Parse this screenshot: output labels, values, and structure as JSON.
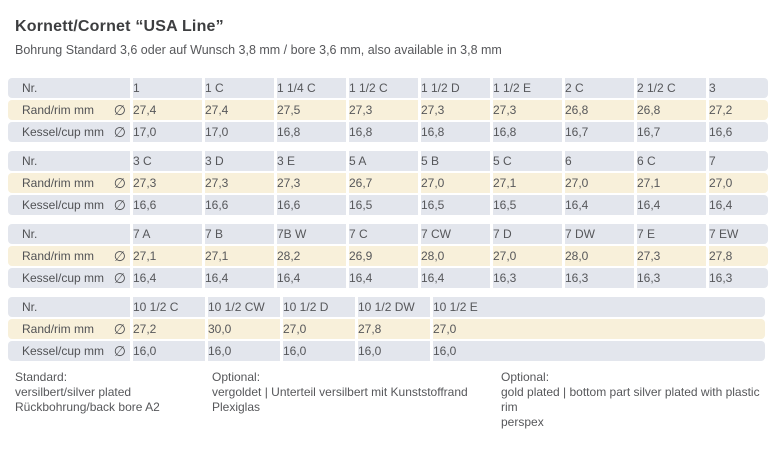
{
  "page": {
    "title": "Kornett/Cornet “USA Line”",
    "subtitle": "Bohrung Standard 3,6 oder auf Wunsch 3,8 mm / bore 3,6 mm, also available in 3,8 mm"
  },
  "table": {
    "row_labels": {
      "nr": "Nr.",
      "rim": "Rand/rim mm",
      "cup": "Kessel/cup mm"
    },
    "diameter_symbol": "∅",
    "blocks": [
      {
        "nr": [
          "1",
          "1 C",
          "1 1/4 C",
          "1 1/2 C",
          "1 1/2 D",
          "1 1/2 E",
          "2 C",
          "2 1/2 C",
          "3"
        ],
        "rim": [
          "27,4",
          "27,4",
          "27,5",
          "27,3",
          "27,3",
          "27,3",
          "26,8",
          "26,8",
          "27,2"
        ],
        "cup": [
          "17,0",
          "17,0",
          "16,8",
          "16,8",
          "16,8",
          "16,8",
          "16,7",
          "16,7",
          "16,6"
        ]
      },
      {
        "nr": [
          "3 C",
          "3 D",
          "3 E",
          "5 A",
          "5 B",
          "5 C",
          "6",
          "6 C",
          "7"
        ],
        "rim": [
          "27,3",
          "27,3",
          "27,3",
          "26,7",
          "27,0",
          "27,1",
          "27,0",
          "27,1",
          "27,0"
        ],
        "cup": [
          "16,6",
          "16,6",
          "16,6",
          "16,5",
          "16,5",
          "16,5",
          "16,4",
          "16,4",
          "16,4"
        ]
      },
      {
        "nr": [
          "7 A",
          "7 B",
          "7B W",
          "7 C",
          "7 CW",
          "7 D",
          "7 DW",
          "7 E",
          "7 EW"
        ],
        "rim": [
          "27,1",
          "27,1",
          "28,2",
          "26,9",
          "28,0",
          "27,0",
          "28,0",
          "27,3",
          "27,8"
        ],
        "cup": [
          "16,4",
          "16,4",
          "16,4",
          "16,4",
          "16,4",
          "16,3",
          "16,3",
          "16,3",
          "16,3"
        ]
      },
      {
        "nr": [
          "10 1/2 C",
          "10 1/2 CW",
          "10 1/2 D",
          "10 1/2 DW",
          "10 1/2 E"
        ],
        "rim": [
          "27,2",
          "30,0",
          "27,0",
          "27,8",
          "27,0"
        ],
        "cup": [
          "16,0",
          "16,0",
          "16,0",
          "16,0",
          "16,0"
        ]
      }
    ]
  },
  "footer": {
    "columns": [
      {
        "lines": [
          "Standard:",
          "versilbert/silver plated",
          "Rückbohrung/back bore A2"
        ]
      },
      {
        "lines": [
          "Optional:",
          "vergoldet | Unterteil versilbert mit Kunststoffrand",
          "Plexiglas"
        ]
      },
      {
        "lines": [
          "Optional:",
          "gold plated | bottom part silver plated with plastic rim",
          "perspex"
        ]
      }
    ]
  },
  "colors": {
    "row_gray": "#e3e6ed",
    "row_cream": "#f8f0da",
    "text": "#56575a",
    "title": "#3d3e40"
  }
}
